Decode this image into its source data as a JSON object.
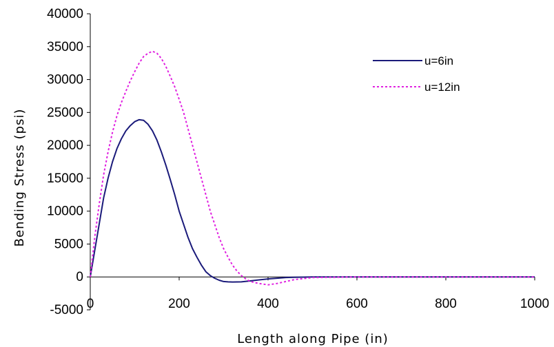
{
  "chart_data": {
    "type": "line",
    "title": "",
    "xlabel": "Length along Pipe (in)",
    "ylabel": "Bending Stress (psi)",
    "xlim": [
      0,
      1000
    ],
    "ylim": [
      -5000,
      40000
    ],
    "x_ticks": [
      0,
      200,
      400,
      600,
      800,
      1000
    ],
    "y_ticks": [
      -5000,
      0,
      5000,
      10000,
      15000,
      20000,
      25000,
      30000,
      35000,
      40000
    ],
    "x_tick_labels": [
      "0",
      "200",
      "400",
      "600",
      "800",
      "1000"
    ],
    "y_tick_labels": [
      "-5000",
      "0",
      "5000",
      "10000",
      "15000",
      "20000",
      "25000",
      "30000",
      "35000",
      "40000"
    ],
    "grid": false,
    "legend_position": "top-right",
    "series": [
      {
        "name": "u=6in",
        "color": "#1a1a7a",
        "dash": "solid",
        "x": [
          0,
          10,
          20,
          30,
          40,
          50,
          60,
          70,
          80,
          90,
          100,
          110,
          120,
          130,
          140,
          150,
          160,
          170,
          180,
          190,
          200,
          210,
          220,
          230,
          240,
          250,
          260,
          270,
          280,
          290,
          300,
          310,
          320,
          340,
          360,
          380,
          400,
          420,
          440,
          460,
          500,
          600,
          700,
          800,
          900,
          1000
        ],
        "y": [
          0,
          4000,
          8000,
          12000,
          15000,
          17500,
          19500,
          21000,
          22200,
          23000,
          23600,
          23900,
          23800,
          23200,
          22200,
          20800,
          19000,
          17000,
          14800,
          12500,
          10000,
          8000,
          6000,
          4300,
          3000,
          1800,
          800,
          200,
          -200,
          -500,
          -700,
          -750,
          -780,
          -750,
          -600,
          -450,
          -300,
          -200,
          -100,
          -50,
          0,
          0,
          0,
          0,
          0,
          0
        ]
      },
      {
        "name": "u=12in",
        "color": "#e020e0",
        "dash": "dotted",
        "x": [
          0,
          10,
          20,
          30,
          40,
          50,
          60,
          70,
          80,
          90,
          100,
          110,
          120,
          130,
          140,
          150,
          160,
          170,
          180,
          190,
          200,
          210,
          220,
          230,
          240,
          250,
          260,
          270,
          280,
          290,
          300,
          310,
          320,
          330,
          340,
          350,
          360,
          380,
          400,
          420,
          440,
          460,
          500,
          600,
          700,
          800,
          900,
          1000
        ],
        "y": [
          0,
          6000,
          11000,
          15500,
          19000,
          22000,
          24500,
          26500,
          28200,
          29800,
          31200,
          32500,
          33500,
          34000,
          34300,
          34000,
          33200,
          32000,
          30500,
          28900,
          27000,
          25000,
          22500,
          20000,
          17500,
          15000,
          12500,
          10000,
          8000,
          6000,
          4300,
          3000,
          1800,
          900,
          200,
          -300,
          -700,
          -1000,
          -1200,
          -1000,
          -700,
          -400,
          -100,
          0,
          0,
          0,
          0,
          0
        ]
      }
    ]
  }
}
